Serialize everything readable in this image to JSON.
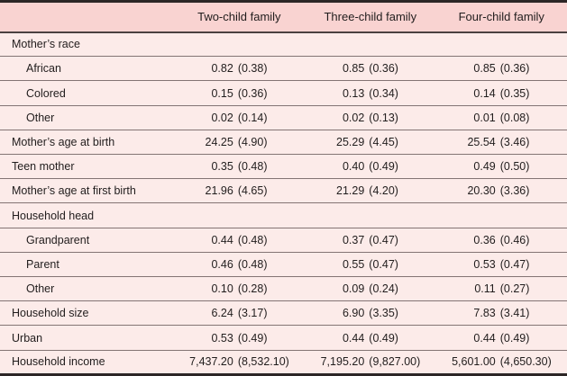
{
  "colors": {
    "header_bg": "#f9d3d1",
    "body_bg": "#fcebe9",
    "outer_border": "#2c2626",
    "header_rule": "#4a4040",
    "row_hairline": "#837474",
    "text": "#211d1d"
  },
  "table": {
    "columns": [
      "",
      "Two-child family",
      "Three-child family",
      "Four-child family"
    ],
    "rows": [
      {
        "label": "Mother’s race",
        "type": "section"
      },
      {
        "label": "African",
        "type": "sub",
        "cells": [
          {
            "mean": "0.82",
            "sd": "(0.38)"
          },
          {
            "mean": "0.85",
            "sd": "(0.36)"
          },
          {
            "mean": "0.85",
            "sd": "(0.36)"
          }
        ]
      },
      {
        "label": "Colored",
        "type": "sub",
        "cells": [
          {
            "mean": "0.15",
            "sd": "(0.36)"
          },
          {
            "mean": "0.13",
            "sd": "(0.34)"
          },
          {
            "mean": "0.14",
            "sd": "(0.35)"
          }
        ]
      },
      {
        "label": "Other",
        "type": "sub",
        "cells": [
          {
            "mean": "0.02",
            "sd": "(0.14)"
          },
          {
            "mean": "0.02",
            "sd": "(0.13)"
          },
          {
            "mean": "0.01",
            "sd": "(0.08)"
          }
        ]
      },
      {
        "label": "Mother’s age at birth",
        "type": "main",
        "cells": [
          {
            "mean": "24.25",
            "sd": "(4.90)"
          },
          {
            "mean": "25.29",
            "sd": "(4.45)"
          },
          {
            "mean": "25.54",
            "sd": "(3.46)"
          }
        ]
      },
      {
        "label": "Teen mother",
        "type": "main",
        "cells": [
          {
            "mean": "0.35",
            "sd": "(0.48)"
          },
          {
            "mean": "0.40",
            "sd": "(0.49)"
          },
          {
            "mean": "0.49",
            "sd": "(0.50)"
          }
        ]
      },
      {
        "label": "Mother’s age at first birth",
        "type": "main",
        "cells": [
          {
            "mean": "21.96",
            "sd": "(4.65)"
          },
          {
            "mean": "21.29",
            "sd": "(4.20)"
          },
          {
            "mean": "20.30",
            "sd": "(3.36)"
          }
        ]
      },
      {
        "label": "Household head",
        "type": "section"
      },
      {
        "label": "Grandparent",
        "type": "sub",
        "cells": [
          {
            "mean": "0.44",
            "sd": "(0.48)"
          },
          {
            "mean": "0.37",
            "sd": "(0.47)"
          },
          {
            "mean": "0.36",
            "sd": "(0.46)"
          }
        ]
      },
      {
        "label": "Parent",
        "type": "sub",
        "cells": [
          {
            "mean": "0.46",
            "sd": "(0.48)"
          },
          {
            "mean": "0.55",
            "sd": "(0.47)"
          },
          {
            "mean": "0.53",
            "sd": "(0.47)"
          }
        ]
      },
      {
        "label": "Other",
        "type": "sub",
        "cells": [
          {
            "mean": "0.10",
            "sd": "(0.28)"
          },
          {
            "mean": "0.09",
            "sd": "(0.24)"
          },
          {
            "mean": "0.11",
            "sd": "(0.27)"
          }
        ]
      },
      {
        "label": "Household size",
        "type": "main",
        "cells": [
          {
            "mean": "6.24",
            "sd": "(3.17)"
          },
          {
            "mean": "6.90",
            "sd": "(3.35)"
          },
          {
            "mean": "7.83",
            "sd": "(3.41)"
          }
        ]
      },
      {
        "label": "Urban",
        "type": "main",
        "cells": [
          {
            "mean": "0.53",
            "sd": "(0.49)"
          },
          {
            "mean": "0.44",
            "sd": "(0.49)"
          },
          {
            "mean": "0.44",
            "sd": "(0.49)"
          }
        ]
      },
      {
        "label": "Household income",
        "type": "main",
        "cells": [
          {
            "mean": "7,437.20",
            "sd": "(8,532.10)"
          },
          {
            "mean": "7,195.20",
            "sd": "(9,827.00)"
          },
          {
            "mean": "5,601.00",
            "sd": "(4,650.30)"
          }
        ]
      }
    ]
  }
}
